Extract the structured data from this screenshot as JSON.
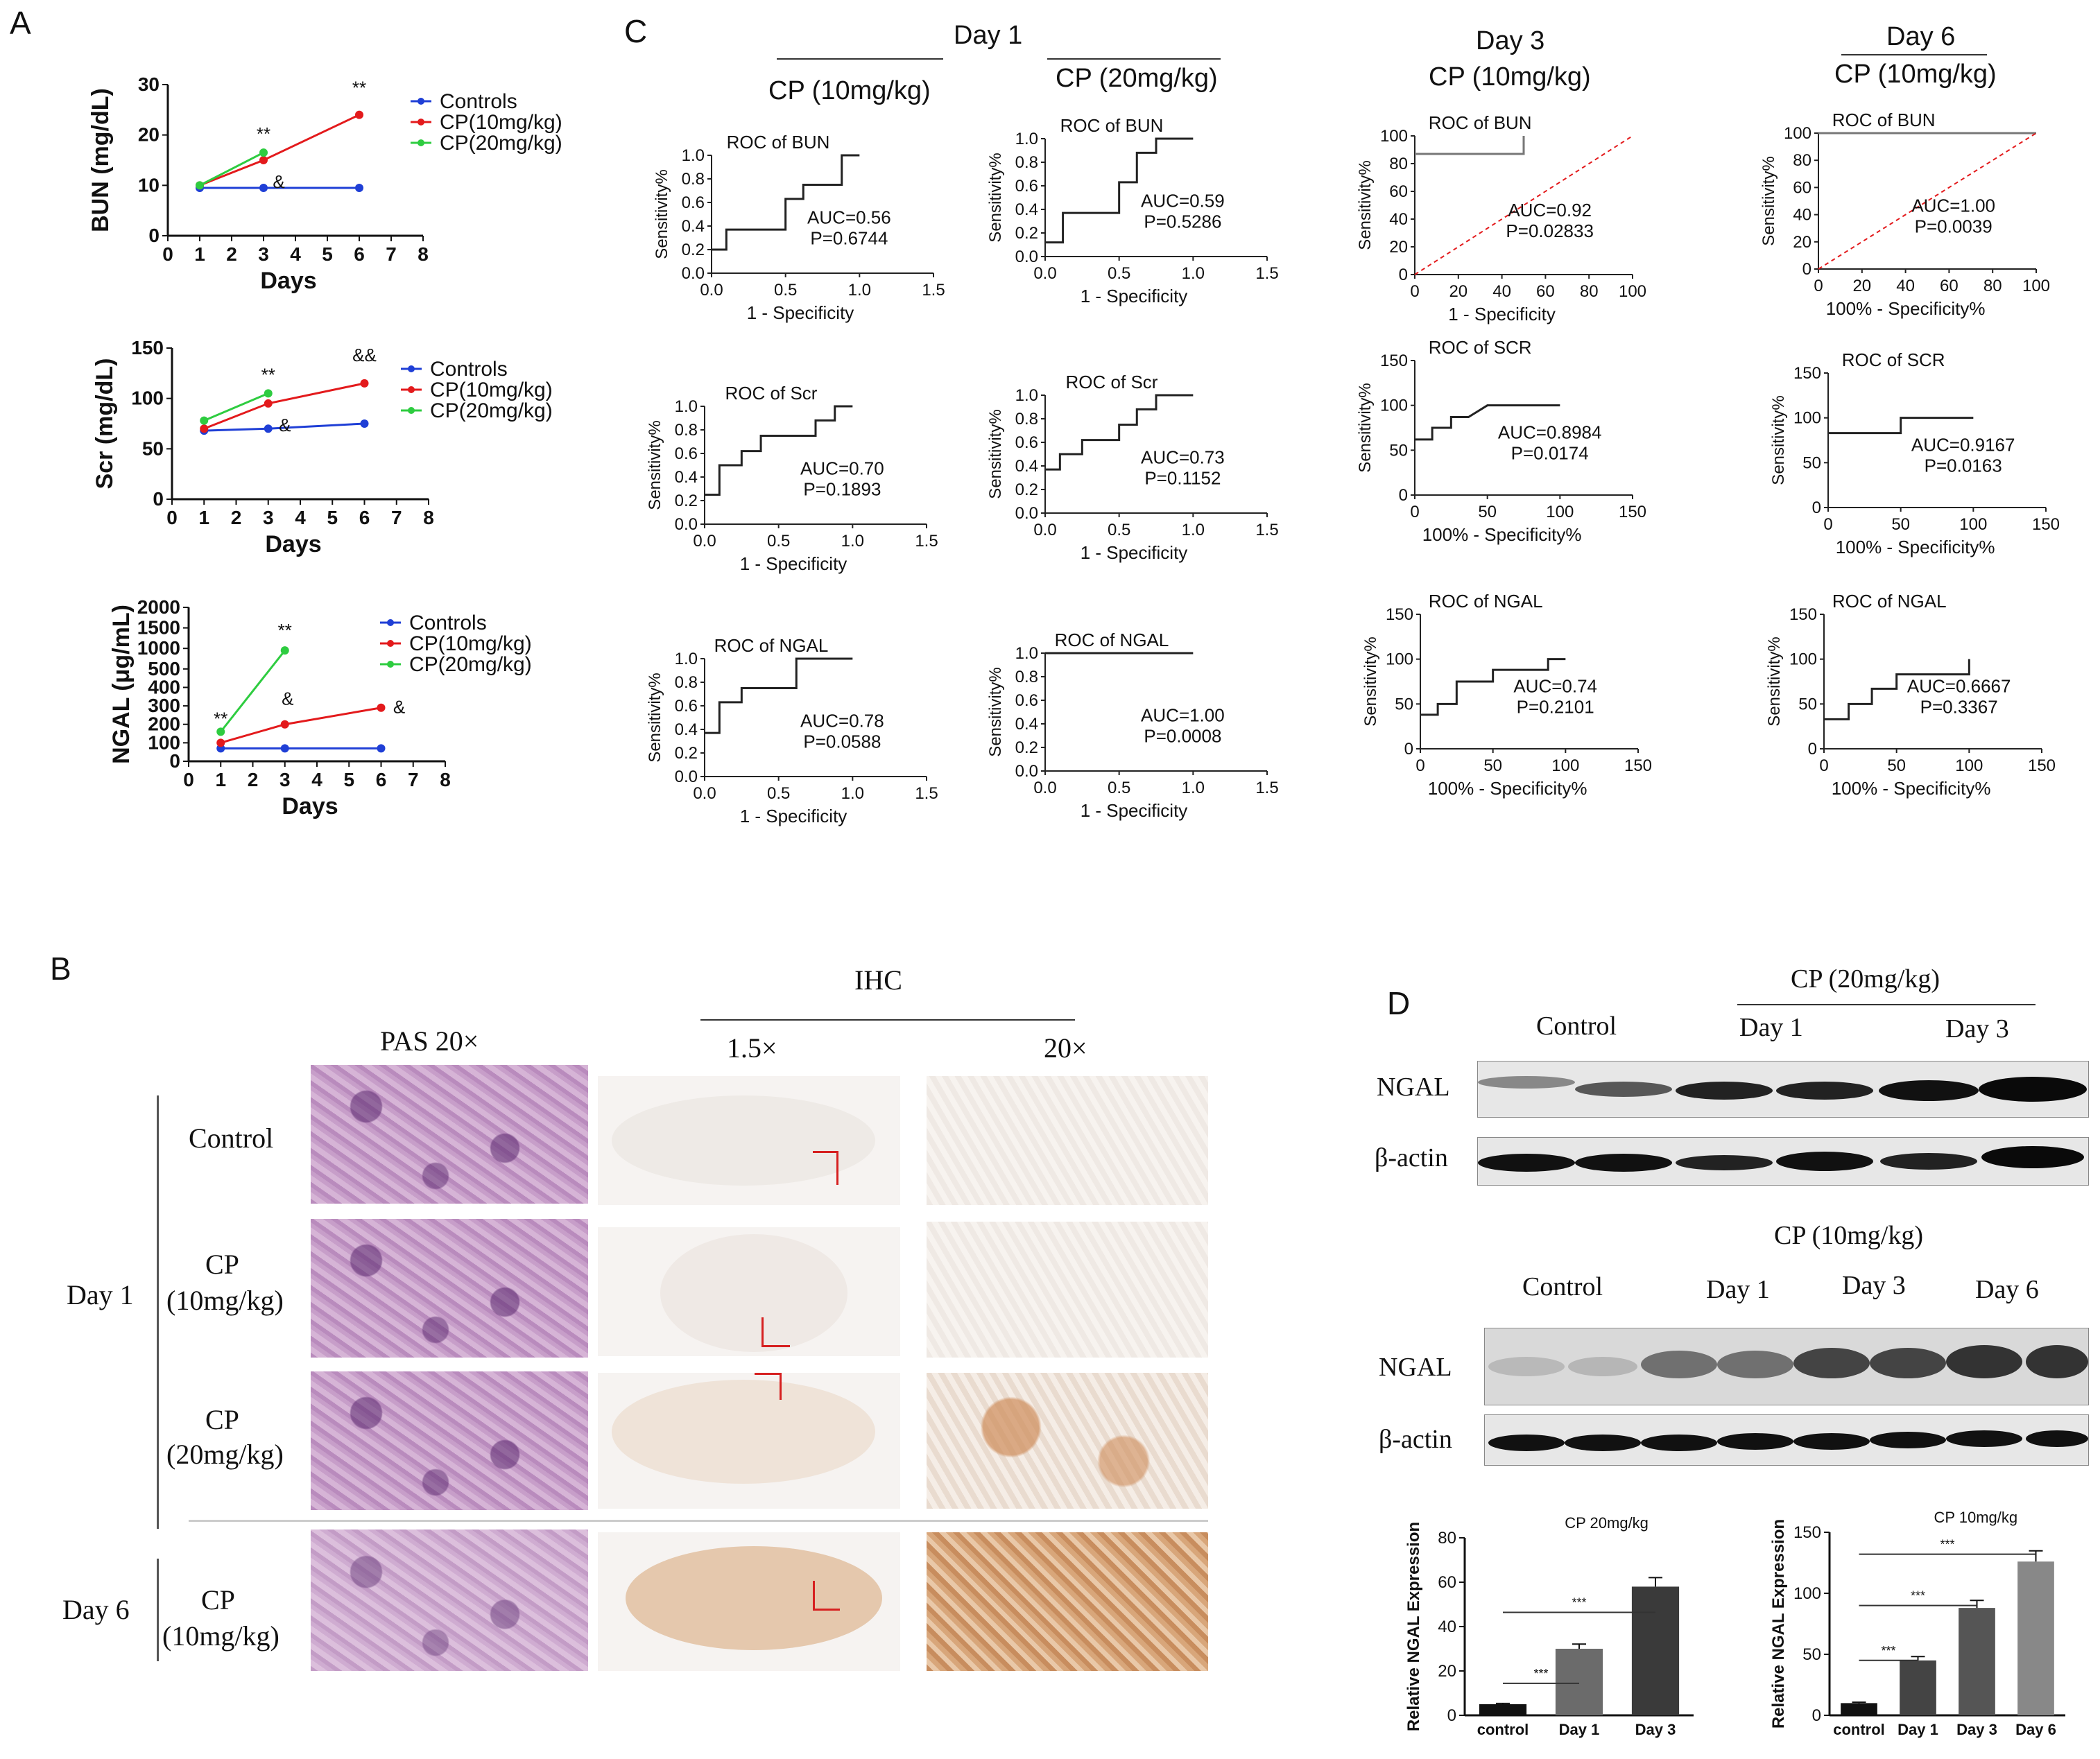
{
  "panel_letters": {
    "a": "A",
    "b": "B",
    "c": "C",
    "d": "D"
  },
  "panel_a": {
    "legend": [
      "Controls",
      "CP(10mg/kg)",
      "CP(20mg/kg)"
    ],
    "series_colors": {
      "controls": "#1f3fd6",
      "cp10": "#e31a1c",
      "cp20": "#2ecc40"
    },
    "xlabel": "Days",
    "x_ticks": [
      "0",
      "1",
      "2",
      "3",
      "4",
      "5",
      "6",
      "7",
      "8"
    ],
    "bun": {
      "ylabel": "BUN (mg/dL)",
      "y_ticks": [
        "0",
        "10",
        "20",
        "30"
      ],
      "stars_cp10_day6": "**",
      "stars_cp20_day3": "**",
      "amp_day3": "&"
    },
    "scr": {
      "ylabel": "Scr (mg/dL)",
      "y_ticks": [
        "0",
        "50",
        "100",
        "150"
      ],
      "stars_cp20_day3": "**",
      "amp_day6": "&&",
      "amp_day3": "&"
    },
    "ngal": {
      "ylabel": "NGAL (μg/mL)",
      "y_ticks": [
        "0",
        "100",
        "200",
        "300",
        "400",
        "500",
        "1000",
        "1500",
        "2000"
      ],
      "stars_day1": "**",
      "stars_cp20_day3": "**",
      "amp_day3": "&",
      "amp_day6": "&"
    }
  },
  "panel_c": {
    "col_headers": {
      "day1": "Day 1",
      "day1_cp10": "CP (10mg/kg)",
      "day1_cp20": "CP (20mg/kg)",
      "day3": "Day 3",
      "day3_cp10": "CP (10mg/kg)",
      "day6": "Day 6",
      "day6_cp10": "CP (10mg/kg)"
    },
    "ylabel": "Sensitivity%",
    "xlabel_a": "1 - Specificity",
    "xlabel_b": "100% - Specificity%",
    "ticks_small": [
      "0.0",
      "0.5",
      "1.0",
      "1.5"
    ],
    "ticks_small_y": [
      "0.0",
      "0.2",
      "0.4",
      "0.6",
      "0.8",
      "1.0"
    ],
    "ticks_100": [
      "0",
      "20",
      "40",
      "60",
      "80",
      "100"
    ],
    "ticks_150": [
      "0",
      "50",
      "100",
      "150"
    ],
    "ticks_150_y": [
      "0",
      "50",
      "100",
      "150"
    ],
    "plots": [
      {
        "title": "ROC of BUN",
        "auc": "AUC=0.56",
        "p": "P=0.6744"
      },
      {
        "title": "ROC of BUN",
        "auc": "AUC=0.59",
        "p": "P=0.5286"
      },
      {
        "title": "ROC of BUN",
        "auc": "AUC=0.92",
        "p": "P=0.02833"
      },
      {
        "title": "ROC of BUN",
        "auc": "AUC=1.00",
        "p": "P=0.0039"
      },
      {
        "title": "ROC of Scr",
        "auc": "AUC=0.70",
        "p": "P=0.1893"
      },
      {
        "title": "ROC of Scr",
        "auc": "AUC=0.73",
        "p": "P=0.1152"
      },
      {
        "title": "ROC of SCR",
        "auc": "AUC=0.8984",
        "p": "P=0.0174"
      },
      {
        "title": "ROC of SCR",
        "auc": "AUC=0.9167",
        "p": "P=0.0163"
      },
      {
        "title": "ROC of NGAL",
        "auc": "AUC=0.78",
        "p": "P=0.0588"
      },
      {
        "title": "ROC of NGAL",
        "auc": "AUC=1.00",
        "p": "P=0.0008"
      },
      {
        "title": "ROC of NGAL",
        "auc": "AUC=0.74",
        "p": "P=0.2101"
      },
      {
        "title": "ROC of NGAL",
        "auc": "AUC=0.6667",
        "p": "P=0.3367"
      }
    ]
  },
  "panel_b": {
    "ihc": "IHC",
    "pas": "PAS 20×",
    "mag_low": "1.5×",
    "mag_high": "20×",
    "day1": "Day 1",
    "day6": "Day 6",
    "row_labels": [
      {
        "line1": "Control",
        "line2": ""
      },
      {
        "line1": "CP",
        "line2": "(10mg/kg)"
      },
      {
        "line1": "CP",
        "line2": "(20mg/kg)"
      },
      {
        "line1": "CP",
        "line2": "(10mg/kg)"
      }
    ]
  },
  "panel_d": {
    "top": {
      "group": "CP (20mg/kg)",
      "control": "Control",
      "day1": "Day 1",
      "day3": "Day 3",
      "ngal": "NGAL",
      "actin": "β-actin"
    },
    "bottom": {
      "group": "CP (10mg/kg)",
      "control": "Control",
      "day1": "Day 1",
      "day3": "Day 3",
      "day6": "Day 6",
      "ngal": "NGAL",
      "actin": "β-actin"
    },
    "bar_left": {
      "ylabel": "Relative NGAL Expression",
      "group": "CP 20mg/kg",
      "categories": [
        "control",
        "Day 1",
        "Day 3"
      ],
      "y_ticks": [
        "0",
        "20",
        "40",
        "60",
        "80"
      ],
      "sig": [
        "***",
        "***"
      ]
    },
    "bar_right": {
      "ylabel": "Relative NGAL Expression",
      "group": "CP 10mg/kg",
      "categories": [
        "control",
        "Day 1",
        "Day 3",
        "Day 6"
      ],
      "y_ticks": [
        "0",
        "50",
        "100",
        "150"
      ],
      "sig": [
        "***",
        "***",
        "***"
      ]
    }
  },
  "chart_data": [
    {
      "type": "line",
      "title": "",
      "ylabel": "BUN (mg/dL)",
      "xlabel": "Days",
      "xlim": [
        0,
        8
      ],
      "ylim": [
        0,
        30
      ],
      "series": [
        {
          "name": "Controls",
          "x": [
            1,
            3,
            6
          ],
          "y": [
            9.5,
            9.5,
            9.5
          ]
        },
        {
          "name": "CP(10mg/kg)",
          "x": [
            1,
            3,
            6
          ],
          "y": [
            10,
            15,
            24
          ]
        },
        {
          "name": "CP(20mg/kg)",
          "x": [
            1,
            3
          ],
          "y": [
            10,
            16.5
          ]
        }
      ]
    },
    {
      "type": "line",
      "title": "",
      "ylabel": "Scr (mg/dL)",
      "xlabel": "Days",
      "xlim": [
        0,
        8
      ],
      "ylim": [
        0,
        150
      ],
      "series": [
        {
          "name": "Controls",
          "x": [
            1,
            3,
            6
          ],
          "y": [
            68,
            70,
            75
          ]
        },
        {
          "name": "CP(10mg/kg)",
          "x": [
            1,
            3,
            6
          ],
          "y": [
            70,
            95,
            115
          ]
        },
        {
          "name": "CP(20mg/kg)",
          "x": [
            1,
            3
          ],
          "y": [
            78,
            105
          ]
        }
      ]
    },
    {
      "type": "line",
      "title": "",
      "ylabel": "NGAL (μg/mL)",
      "xlabel": "Days",
      "xlim": [
        0,
        8
      ],
      "ylim": [
        0,
        2000
      ],
      "series": [
        {
          "name": "Controls",
          "x": [
            1,
            3,
            6
          ],
          "y": [
            70,
            70,
            70
          ]
        },
        {
          "name": "CP(10mg/kg)",
          "x": [
            1,
            3,
            6
          ],
          "y": [
            100,
            200,
            290
          ]
        },
        {
          "name": "CP(20mg/kg)",
          "x": [
            1,
            3
          ],
          "y": [
            160,
            950
          ]
        }
      ]
    },
    {
      "type": "bar",
      "title": "CP 20mg/kg",
      "ylabel": "Relative NGAL Expression",
      "categories": [
        "control",
        "Day 1",
        "Day 3"
      ],
      "values": [
        5,
        30,
        58
      ],
      "ylim": [
        0,
        80
      ]
    },
    {
      "type": "bar",
      "title": "CP 10mg/kg",
      "ylabel": "Relative NGAL Expression",
      "categories": [
        "control",
        "Day 1",
        "Day 3",
        "Day 6"
      ],
      "values": [
        10,
        45,
        88,
        126
      ],
      "ylim": [
        0,
        150
      ]
    }
  ]
}
